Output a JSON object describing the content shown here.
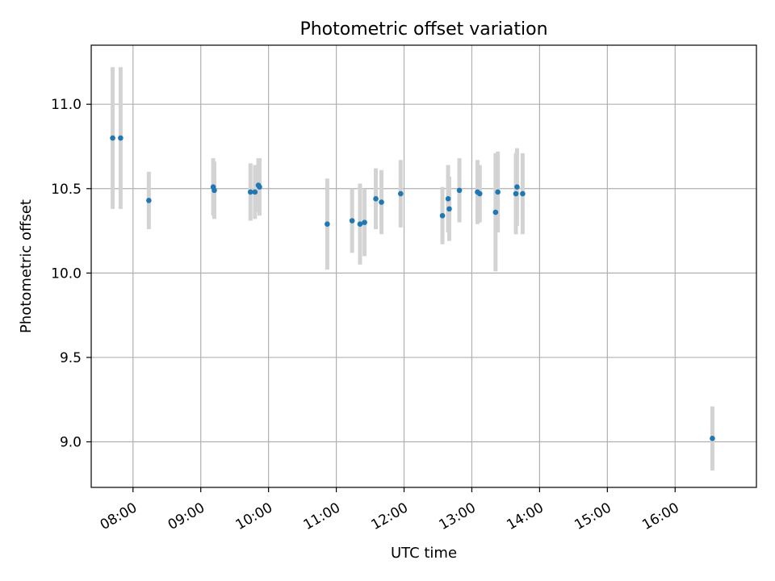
{
  "chart_data": {
    "type": "scatter",
    "title": "Photometric offset variation",
    "xlabel": "UTC time",
    "ylabel": "Photometric offset",
    "grid": true,
    "x_unit": "time of day (UTC)",
    "xlim": [
      "07:23",
      "17:12"
    ],
    "ylim": [
      8.73,
      11.35
    ],
    "x_ticks": [
      "08:00",
      "09:00",
      "10:00",
      "11:00",
      "12:00",
      "13:00",
      "14:00",
      "15:00",
      "16:00"
    ],
    "y_ticks": [
      "9.0",
      "9.5",
      "10.0",
      "10.5",
      "11.0"
    ],
    "point_color": "#1f77b4",
    "errorbar_color": "#d3d3d3",
    "series": [
      {
        "points": [
          {
            "time": "07:42",
            "y": 10.8,
            "err": 0.42
          },
          {
            "time": "07:49",
            "y": 10.8,
            "err": 0.42
          },
          {
            "time": "08:14",
            "y": 10.43,
            "err": 0.17
          },
          {
            "time": "09:11",
            "y": 10.51,
            "err": 0.17
          },
          {
            "time": "09:12",
            "y": 10.49,
            "err": 0.17
          },
          {
            "time": "09:44",
            "y": 10.48,
            "err": 0.17
          },
          {
            "time": "09:48",
            "y": 10.48,
            "err": 0.16
          },
          {
            "time": "09:51",
            "y": 10.52,
            "err": 0.16
          },
          {
            "time": "09:52",
            "y": 10.51,
            "err": 0.17
          },
          {
            "time": "10:52",
            "y": 10.29,
            "err": 0.27
          },
          {
            "time": "11:14",
            "y": 10.31,
            "err": 0.19
          },
          {
            "time": "11:21",
            "y": 10.29,
            "err": 0.24
          },
          {
            "time": "11:25",
            "y": 10.3,
            "err": 0.2
          },
          {
            "time": "11:35",
            "y": 10.44,
            "err": 0.18
          },
          {
            "time": "11:40",
            "y": 10.42,
            "err": 0.19
          },
          {
            "time": "11:57",
            "y": 10.47,
            "err": 0.2
          },
          {
            "time": "12:34",
            "y": 10.34,
            "err": 0.17
          },
          {
            "time": "12:39",
            "y": 10.44,
            "err": 0.2
          },
          {
            "time": "12:40",
            "y": 10.38,
            "err": 0.19
          },
          {
            "time": "12:49",
            "y": 10.49,
            "err": 0.19
          },
          {
            "time": "13:05",
            "y": 10.48,
            "err": 0.19
          },
          {
            "time": "13:07",
            "y": 10.47,
            "err": 0.17
          },
          {
            "time": "13:21",
            "y": 10.36,
            "err": 0.35
          },
          {
            "time": "13:23",
            "y": 10.48,
            "err": 0.24
          },
          {
            "time": "13:39",
            "y": 10.47,
            "err": 0.24
          },
          {
            "time": "13:40",
            "y": 10.51,
            "err": 0.23
          },
          {
            "time": "13:45",
            "y": 10.47,
            "err": 0.24
          },
          {
            "time": "16:33",
            "y": 9.02,
            "err": 0.19
          }
        ]
      }
    ]
  }
}
